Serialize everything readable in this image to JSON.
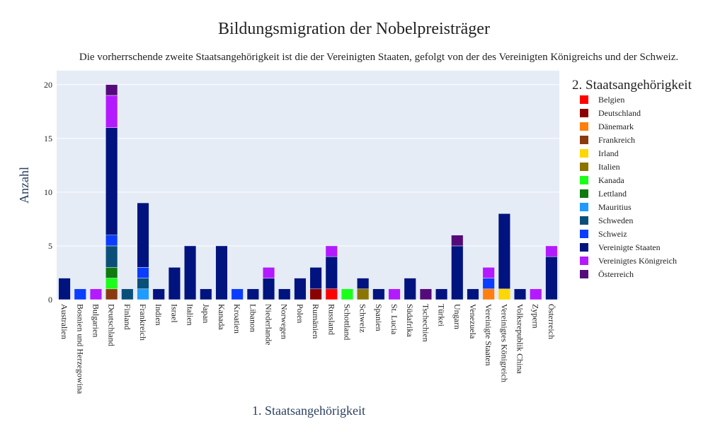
{
  "chart_data": {
    "type": "bar",
    "stacked": true,
    "title": "Bildungsmigration der Nobelpreisträger",
    "subtitle": "Die vorherrschende zweite Staatsangehörigkeit ist die der Vereinigten Staaten, gefolgt von der des Vereinigten Königreichs und der Schweiz.",
    "xlabel": "1. Staatsangehörigkeit",
    "ylabel": "Anzahl",
    "ylim": [
      0,
      21.3
    ],
    "yticks": [
      0,
      5,
      10,
      15,
      20
    ],
    "grid": true,
    "legend_title": "2. Staatsangehörigkeit",
    "legend_position": "right",
    "categories": [
      "Australien",
      "Bosnien und Herzegowina",
      "Bulgarien",
      "Deutschland",
      "Finland",
      "Frankreich",
      "Indien",
      "Israel",
      "Italien",
      "Japan",
      "Kanada",
      "Kroatien",
      "Libanon",
      "Niederlande",
      "Norwegen",
      "Polen",
      "Rumänien",
      "Russland",
      "Schottland",
      "Schweiz",
      "Spanien",
      "St. Lucia",
      "Südafrika",
      "Tschechien",
      "Türkei",
      "Ungarn",
      "Venezuela",
      "Vereinigte Staaten",
      "Vereinigtes Königreich",
      "Volksrepublik China",
      "Zypern",
      "Österreich"
    ],
    "series": [
      {
        "name": "Belgien",
        "color": "#ff0000",
        "values": [
          0,
          0,
          0,
          0,
          0,
          0,
          0,
          0,
          0,
          0,
          0,
          0,
          0,
          0,
          0,
          0,
          0,
          1,
          0,
          0,
          0,
          0,
          0,
          0,
          0,
          0,
          0,
          0,
          0,
          0,
          0,
          0
        ]
      },
      {
        "name": "Deutschland",
        "color": "#8b0000",
        "values": [
          0,
          0,
          0,
          0,
          0,
          0,
          0,
          0,
          0,
          0,
          0,
          0,
          0,
          0,
          0,
          0,
          1,
          0,
          0,
          0,
          0,
          0,
          0,
          0,
          0,
          0,
          0,
          0,
          0,
          0,
          0,
          0
        ]
      },
      {
        "name": "Dänemark",
        "color": "#ff7f0e",
        "values": [
          0,
          0,
          0,
          0,
          0,
          0,
          0,
          0,
          0,
          0,
          0,
          0,
          0,
          0,
          0,
          0,
          0,
          0,
          0,
          0,
          0,
          0,
          0,
          0,
          0,
          0,
          0,
          1,
          0,
          0,
          0,
          0
        ]
      },
      {
        "name": "Frankreich",
        "color": "#8b3a0f",
        "values": [
          0,
          0,
          0,
          1,
          0,
          0,
          0,
          0,
          0,
          0,
          0,
          0,
          0,
          0,
          0,
          0,
          0,
          0,
          0,
          0,
          0,
          0,
          0,
          0,
          0,
          0,
          0,
          0,
          0,
          0,
          0,
          0
        ]
      },
      {
        "name": "Irland",
        "color": "#ffd700",
        "values": [
          0,
          0,
          0,
          0,
          0,
          0,
          0,
          0,
          0,
          0,
          0,
          0,
          0,
          0,
          0,
          0,
          0,
          0,
          0,
          0,
          0,
          0,
          0,
          0,
          0,
          0,
          0,
          0,
          1,
          0,
          0,
          0
        ]
      },
      {
        "name": "Italien",
        "color": "#8b7500",
        "values": [
          0,
          0,
          0,
          0,
          0,
          0,
          0,
          0,
          0,
          0,
          0,
          0,
          0,
          0,
          0,
          0,
          0,
          0,
          0,
          1,
          0,
          0,
          0,
          0,
          0,
          0,
          0,
          0,
          0,
          0,
          0,
          0
        ]
      },
      {
        "name": "Kanada",
        "color": "#1aff1a",
        "values": [
          0,
          0,
          0,
          1,
          0,
          0,
          0,
          0,
          0,
          0,
          0,
          0,
          0,
          0,
          0,
          0,
          0,
          0,
          1,
          0,
          0,
          0,
          0,
          0,
          0,
          0,
          0,
          0,
          0,
          0,
          0,
          0
        ]
      },
      {
        "name": "Lettland",
        "color": "#0f7a0f",
        "values": [
          0,
          0,
          0,
          1,
          0,
          0,
          0,
          0,
          0,
          0,
          0,
          0,
          0,
          0,
          0,
          0,
          0,
          0,
          0,
          0,
          0,
          0,
          0,
          0,
          0,
          0,
          0,
          0,
          0,
          0,
          0,
          0
        ]
      },
      {
        "name": "Mauritius",
        "color": "#1f9bff",
        "values": [
          0,
          0,
          0,
          0,
          0,
          1,
          0,
          0,
          0,
          0,
          0,
          0,
          0,
          0,
          0,
          0,
          0,
          0,
          0,
          0,
          0,
          0,
          0,
          0,
          0,
          0,
          0,
          0,
          0,
          0,
          0,
          0
        ]
      },
      {
        "name": "Schweden",
        "color": "#0a4f7a",
        "values": [
          0,
          0,
          0,
          2,
          1,
          1,
          0,
          0,
          0,
          0,
          0,
          0,
          0,
          0,
          0,
          0,
          0,
          0,
          0,
          0,
          0,
          0,
          0,
          0,
          0,
          0,
          0,
          0,
          0,
          0,
          0,
          0
        ]
      },
      {
        "name": "Schweiz",
        "color": "#0a3dff",
        "values": [
          0,
          1,
          0,
          1,
          0,
          1,
          0,
          0,
          0,
          0,
          0,
          1,
          0,
          0,
          0,
          0,
          0,
          0,
          0,
          0,
          0,
          0,
          0,
          0,
          0,
          0,
          0,
          1,
          0,
          0,
          0,
          0
        ]
      },
      {
        "name": "Vereinigte Staaten",
        "color": "#00137f",
        "values": [
          2,
          0,
          0,
          10,
          0,
          6,
          1,
          3,
          5,
          1,
          5,
          0,
          1,
          2,
          1,
          2,
          2,
          3,
          0,
          1,
          1,
          0,
          2,
          0,
          1,
          5,
          1,
          0,
          7,
          1,
          0,
          4
        ]
      },
      {
        "name": "Vereinigtes Königreich",
        "color": "#b31aff",
        "values": [
          0,
          0,
          1,
          3,
          0,
          0,
          0,
          0,
          0,
          0,
          0,
          0,
          0,
          1,
          0,
          0,
          0,
          1,
          0,
          0,
          0,
          1,
          0,
          0,
          0,
          0,
          0,
          1,
          0,
          0,
          1,
          1
        ]
      },
      {
        "name": "Österreich",
        "color": "#550a7a",
        "values": [
          0,
          0,
          0,
          1,
          0,
          0,
          0,
          0,
          0,
          0,
          0,
          0,
          0,
          0,
          0,
          0,
          0,
          0,
          0,
          0,
          0,
          0,
          0,
          1,
          0,
          1,
          0,
          0,
          0,
          0,
          0,
          0
        ]
      }
    ]
  }
}
